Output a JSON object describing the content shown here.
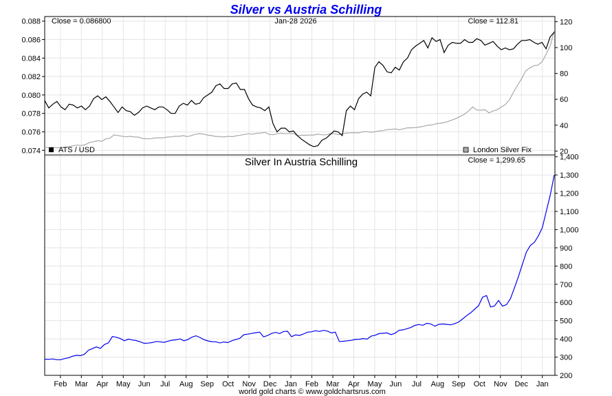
{
  "chart_data": {
    "type": "line",
    "title": "Silver vs Austria Schilling",
    "footer": "world gold charts © www.goldchartsrus.com",
    "x_labels": [
      "Feb",
      "Mar",
      "Apr",
      "May",
      "Jun",
      "Jul",
      "Aug",
      "Sep",
      "Oct",
      "Nov",
      "Dec",
      "Jan",
      "Feb",
      "Mar",
      "Apr",
      "May",
      "Jun",
      "Jul",
      "Aug",
      "Sep",
      "Oct",
      "Nov",
      "Dec",
      "Jan"
    ],
    "top_panel": {
      "date_label": "Jan-28  2026",
      "left_close": "Close = 0.086800",
      "right_close": "Close = 112.81",
      "left_axis": {
        "ticks": [
          "0.088",
          "0.086",
          "0.084",
          "0.082",
          "0.080",
          "0.078",
          "0.076",
          "0.074"
        ],
        "range": [
          0.0735,
          0.0885
        ]
      },
      "right_axis": {
        "ticks": [
          "120",
          "100",
          "80",
          "60",
          "40",
          "20"
        ],
        "range": [
          17,
          124
        ]
      },
      "legend_left": "ATS / USD",
      "legend_right": "London Silver Fix",
      "series": [
        {
          "name": "ATS / USD",
          "color": "#000000",
          "values": [
            0.0794,
            0.0786,
            0.079,
            0.0793,
            0.0787,
            0.0784,
            0.079,
            0.0789,
            0.0786,
            0.0788,
            0.0784,
            0.0788,
            0.0796,
            0.0799,
            0.0795,
            0.0798,
            0.0793,
            0.0787,
            0.0781,
            0.0787,
            0.0783,
            0.0782,
            0.0778,
            0.0781,
            0.0786,
            0.0788,
            0.0786,
            0.0784,
            0.0787,
            0.0787,
            0.0784,
            0.078,
            0.078,
            0.0788,
            0.0791,
            0.0789,
            0.0794,
            0.079,
            0.0791,
            0.0797,
            0.08,
            0.0803,
            0.081,
            0.0812,
            0.0807,
            0.0807,
            0.0812,
            0.0813,
            0.0806,
            0.0806,
            0.0796,
            0.0789,
            0.0787,
            0.0786,
            0.0783,
            0.0787,
            0.0769,
            0.076,
            0.0764,
            0.0764,
            0.076,
            0.0761,
            0.0756,
            0.0752,
            0.0749,
            0.0746,
            0.0744,
            0.0745,
            0.0751,
            0.0753,
            0.0757,
            0.0761,
            0.076,
            0.0756,
            0.0783,
            0.0788,
            0.0784,
            0.0796,
            0.0801,
            0.0803,
            0.0799,
            0.083,
            0.0836,
            0.0832,
            0.0825,
            0.0824,
            0.083,
            0.0827,
            0.0836,
            0.084,
            0.0849,
            0.0853,
            0.0856,
            0.0859,
            0.0851,
            0.0862,
            0.0858,
            0.086,
            0.0846,
            0.0854,
            0.0857,
            0.0856,
            0.0856,
            0.086,
            0.0857,
            0.0857,
            0.0861,
            0.0859,
            0.0854,
            0.0856,
            0.0858,
            0.0853,
            0.0849,
            0.0851,
            0.0849,
            0.085,
            0.0855,
            0.0859,
            0.0859,
            0.086,
            0.0857,
            0.0855,
            0.0857,
            0.085,
            0.0863,
            0.0868
          ]
        },
        {
          "name": "London Silver Fix",
          "color": "#a8a8a8",
          "values": [
            23.0,
            22.7,
            22.9,
            22.5,
            22.6,
            22.8,
            23.4,
            24.1,
            24.6,
            24.3,
            25.0,
            26.7,
            27.2,
            28.0,
            27.5,
            29.4,
            30.0,
            32.5,
            32.0,
            31.5,
            31.0,
            31.4,
            30.9,
            30.8,
            29.7,
            29.5,
            29.6,
            30.1,
            30.3,
            30.2,
            30.8,
            31.0,
            31.4,
            31.4,
            31.9,
            31.2,
            32.0,
            33.0,
            33.5,
            33.1,
            32.4,
            31.9,
            31.3,
            31.2,
            30.9,
            31.4,
            31.1,
            31.8,
            32.3,
            32.8,
            33.4,
            33.1,
            33.7,
            33.9,
            34.5,
            32.9,
            32.6,
            33.4,
            33.8,
            33.4,
            33.6,
            33.5,
            31.9,
            32.3,
            32.2,
            32.4,
            32.4,
            33.0,
            32.6,
            32.5,
            33.4,
            33.6,
            32.7,
            33.4,
            34.0,
            34.1,
            34.2,
            34.1,
            34.9,
            35.0,
            34.6,
            34.9,
            35.6,
            35.8,
            36.6,
            36.7,
            37.1,
            36.5,
            37.2,
            38.0,
            38.0,
            38.2,
            38.6,
            39.2,
            40.0,
            40.2,
            41.1,
            41.5,
            42.0,
            42.9,
            44.1,
            45.3,
            46.9,
            48.5,
            51.0,
            54.1,
            51.7,
            51.6,
            52.0,
            49.5,
            51.0,
            52.0,
            54.0,
            56.0,
            59.6,
            65.5,
            70.8,
            76.0,
            82.0,
            84.2,
            86.0,
            86.4,
            88.9,
            94.8,
            101.2,
            112.8
          ]
        }
      ]
    },
    "bottom_panel": {
      "title": "Silver In Austria Schilling",
      "close_label": "Close = 1,299.65",
      "axis": {
        "ticks": [
          "1,400",
          "1,300",
          "1,200",
          "1,100",
          "1,000",
          "900",
          "800",
          "700",
          "600",
          "500",
          "400",
          "300",
          "200"
        ],
        "range": [
          200,
          1410
        ]
      },
      "series": [
        {
          "name": "Silver In Austria Schilling",
          "color": "#0000ee",
          "values": [
            289,
            288,
            290,
            286,
            286,
            292,
            296,
            305,
            310,
            308,
            316,
            338,
            347,
            356,
            348,
            369,
            378,
            413,
            409,
            402,
            390,
            399,
            394,
            391,
            384,
            376,
            377,
            380,
            386,
            384,
            381,
            388,
            393,
            395,
            400,
            390,
            397,
            410,
            417,
            408,
            396,
            389,
            385,
            384,
            378,
            383,
            380,
            390,
            397,
            403,
            423,
            426,
            430,
            434,
            437,
            411,
            419,
            430,
            436,
            429,
            441,
            442,
            412,
            422,
            419,
            427,
            437,
            439,
            445,
            441,
            447,
            443,
            433,
            437,
            386,
            387,
            390,
            392,
            397,
            398,
            402,
            399,
            415,
            420,
            429,
            431,
            433,
            424,
            431,
            447,
            450,
            456,
            463,
            474,
            479,
            475,
            486,
            482,
            470,
            480,
            482,
            480,
            477,
            484,
            493,
            510,
            528,
            543,
            563,
            583,
            629,
            638,
            575,
            581,
            611,
            580,
            588,
            621,
            680,
            742,
            810,
            877,
            913,
            930,
            965,
            1010,
            1100,
            1190,
            1300
          ]
        }
      ]
    }
  }
}
